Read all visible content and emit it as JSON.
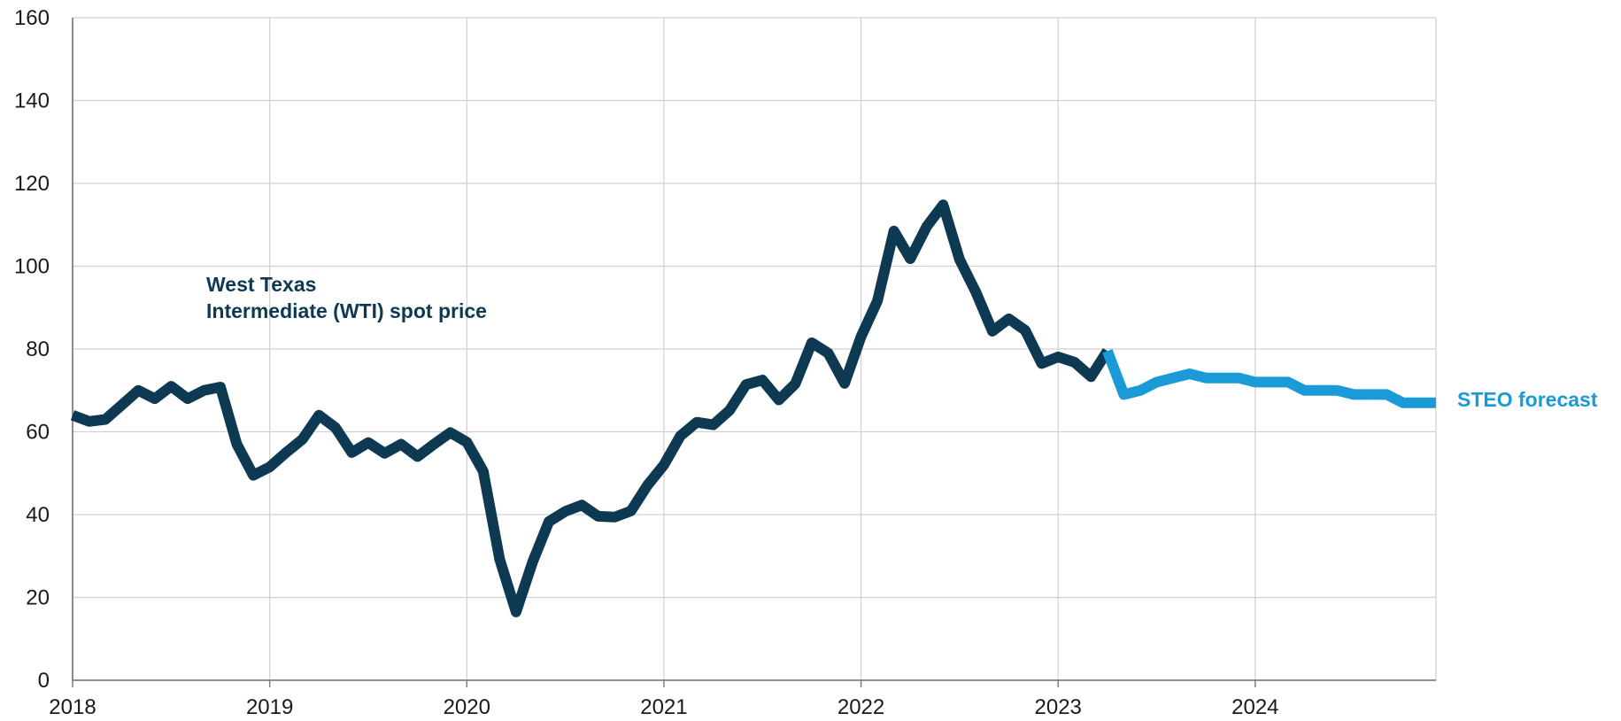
{
  "chart_data": {
    "type": "line",
    "ylim": [
      0,
      160
    ],
    "y_ticks": [
      0,
      20,
      40,
      60,
      80,
      100,
      120,
      140,
      160
    ],
    "x_range": [
      2018.0,
      2024.917
    ],
    "x_ticks": [
      "2018",
      "2019",
      "2020",
      "2021",
      "2022",
      "2023",
      "2024"
    ],
    "grid": true,
    "colors": {
      "history": "#0d3a52",
      "forecast": "#1a9ad6",
      "grid": "#d0d0d0"
    },
    "annotations": [
      {
        "series": "history",
        "lines": [
          "West Texas",
          "Intermediate (WTI) spot price"
        ]
      },
      {
        "series": "forecast",
        "lines": [
          "STEO forecast"
        ]
      }
    ],
    "series": [
      {
        "key": "history",
        "name": "West Texas Intermediate (WTI) spot price",
        "x": [
          "2018-01",
          "2018-02",
          "2018-03",
          "2018-04",
          "2018-05",
          "2018-06",
          "2018-07",
          "2018-08",
          "2018-09",
          "2018-10",
          "2018-11",
          "2018-12",
          "2019-01",
          "2019-02",
          "2019-03",
          "2019-04",
          "2019-05",
          "2019-06",
          "2019-07",
          "2019-08",
          "2019-09",
          "2019-10",
          "2019-11",
          "2019-12",
          "2020-01",
          "2020-02",
          "2020-03",
          "2020-04",
          "2020-05",
          "2020-06",
          "2020-07",
          "2020-08",
          "2020-09",
          "2020-10",
          "2020-11",
          "2020-12",
          "2021-01",
          "2021-02",
          "2021-03",
          "2021-04",
          "2021-05",
          "2021-06",
          "2021-07",
          "2021-08",
          "2021-09",
          "2021-10",
          "2021-11",
          "2021-12",
          "2022-01",
          "2022-02",
          "2022-03",
          "2022-04",
          "2022-05",
          "2022-06",
          "2022-07",
          "2022-08",
          "2022-09",
          "2022-10",
          "2022-11",
          "2022-12",
          "2023-01",
          "2023-02",
          "2023-03",
          "2023-04"
        ],
        "values": [
          64,
          62.5,
          63,
          66.5,
          70,
          68,
          71,
          68,
          70,
          70.8,
          57,
          49.5,
          51.5,
          55,
          58.2,
          64,
          61,
          55,
          57.4,
          54.8,
          57,
          54,
          57,
          59.8,
          57.5,
          50.5,
          29.2,
          16.5,
          28.5,
          38.3,
          40.8,
          42.3,
          39.6,
          39.4,
          40.9,
          47.1,
          52,
          59,
          62.3,
          61.7,
          65.2,
          71.4,
          72.5,
          67.7,
          71.6,
          81.5,
          79,
          71.7,
          83,
          91.6,
          108.5,
          101.8,
          109.6,
          114.8,
          101.6,
          93.7,
          84.3,
          87.3,
          84.5,
          76.5,
          78.1,
          76.8,
          73.3,
          79.5
        ]
      },
      {
        "key": "forecast",
        "name": "STEO forecast",
        "x": [
          "2023-04",
          "2023-05",
          "2023-06",
          "2023-07",
          "2023-08",
          "2023-09",
          "2023-10",
          "2023-11",
          "2023-12",
          "2024-01",
          "2024-02",
          "2024-03",
          "2024-04",
          "2024-05",
          "2024-06",
          "2024-07",
          "2024-08",
          "2024-09",
          "2024-10",
          "2024-11",
          "2024-12"
        ],
        "values": [
          79.5,
          69,
          70,
          72,
          73,
          74,
          73,
          73,
          73,
          72,
          72,
          72,
          70,
          70,
          70,
          69,
          69,
          69,
          67,
          67,
          67
        ]
      }
    ]
  }
}
